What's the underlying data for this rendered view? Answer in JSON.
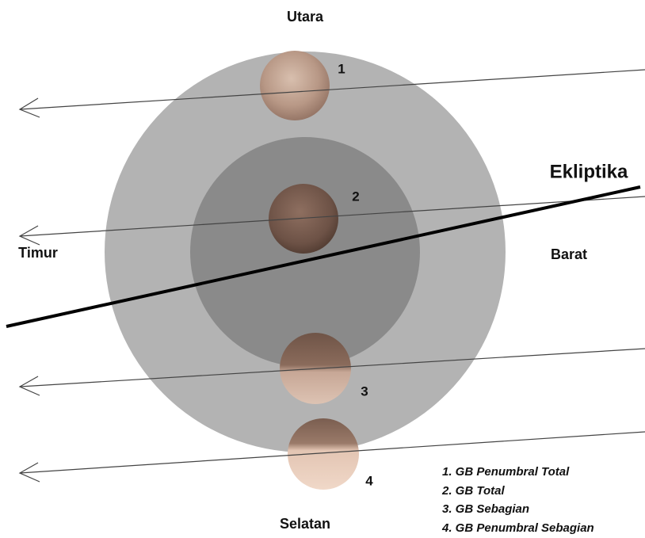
{
  "directions": {
    "north": "Utara",
    "east": "Timur",
    "west": "Barat",
    "south": "Selatan"
  },
  "ecliptic": {
    "label": "Ekliptika"
  },
  "moons": [
    {
      "label": "1"
    },
    {
      "label": "2"
    },
    {
      "label": "3"
    },
    {
      "label": "4"
    }
  ],
  "legend": {
    "items": [
      "1. GB Penumbral Total",
      "2. GB Total",
      "3. GB Sebagian",
      "4. GB Penumbral Sebagian"
    ]
  }
}
